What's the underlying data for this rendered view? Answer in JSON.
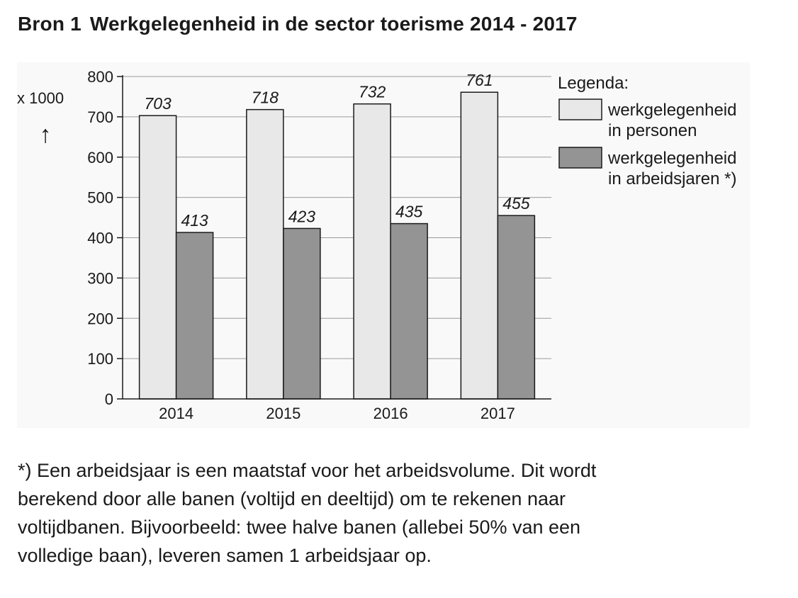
{
  "heading": {
    "source": "Bron 1",
    "title": "Werkgelegenheid in de sector toerisme 2014 - 2017"
  },
  "chart_data": {
    "type": "bar",
    "categories": [
      "2014",
      "2015",
      "2016",
      "2017"
    ],
    "series": [
      {
        "name": "werkgelegenheid in personen",
        "legend_lines": [
          "werkgelegenheid",
          "in personen"
        ],
        "values": [
          703,
          718,
          732,
          761
        ],
        "color": "#e8e8e8"
      },
      {
        "name": "werkgelegenheid in arbeidsjaren *)",
        "legend_lines": [
          "werkgelegenheid",
          "in arbeidsjaren *)"
        ],
        "values": [
          413,
          423,
          435,
          455
        ],
        "color": "#949494"
      }
    ],
    "ylim": [
      0,
      800
    ],
    "yticks": [
      0,
      100,
      200,
      300,
      400,
      500,
      600,
      700,
      800
    ],
    "ylabel": "x 1000",
    "ylabel_arrow": "↑",
    "legend_title": "Legenda:",
    "legend_position": "right",
    "grid": true
  },
  "footnote": "*) Een arbeidsjaar is een maatstaf voor het arbeidsvolume. Dit wordt\nberekend door alle banen (voltijd en deeltijd) om te rekenen naar\nvoltijdbanen. Bijvoorbeeld: twee halve banen (allebei 50% van een\nvolledige baan), leveren samen 1 arbeidsjaar op."
}
